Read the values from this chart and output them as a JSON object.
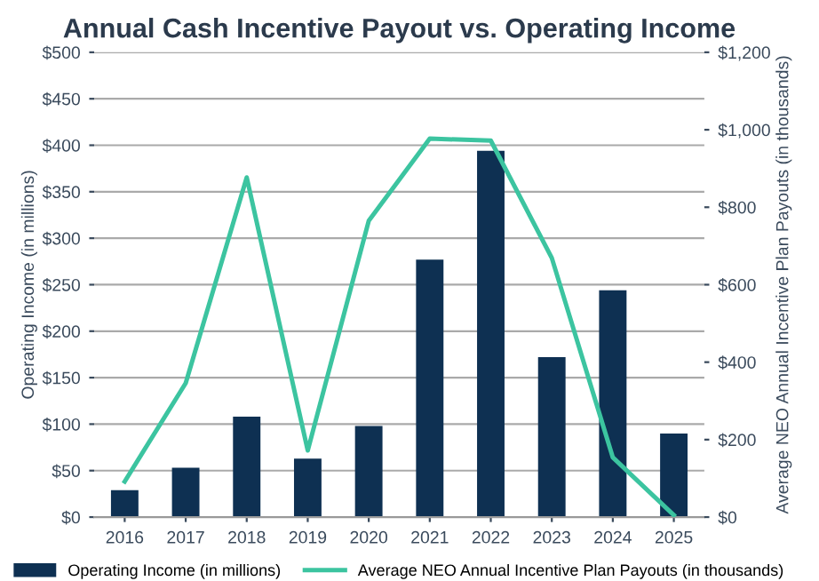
{
  "chart_data": {
    "type": "bar",
    "title": "Annual Cash Incentive Payout vs. Operating Income",
    "ylabel": "Operating Income (in millions)",
    "y2label": "Average NEO Annual Incentive Plan Payouts (in thousands)",
    "categories": [
      "2016",
      "2017",
      "2018",
      "2019",
      "2020",
      "2021",
      "2022",
      "2023",
      "2024",
      "2025"
    ],
    "series": [
      {
        "name": "Operating Income (in millions)",
        "color": "#0e3052",
        "values": [
          29,
          53,
          108,
          63,
          98,
          277,
          394,
          172,
          244,
          90
        ]
      },
      {
        "name": "Average NEO Annual Incentive Plan Payouts (in thousands)",
        "type": "line",
        "axis": "y2",
        "color": "#3cc4a0",
        "values": [
          92,
          346,
          877,
          172,
          765,
          977,
          972,
          669,
          154,
          5
        ]
      }
    ],
    "ylim": [
      0,
      500
    ],
    "yticks": [
      {
        "value": 0,
        "label": "$0"
      },
      {
        "value": 50,
        "label": "$50"
      },
      {
        "value": 100,
        "label": "$100"
      },
      {
        "value": 150,
        "label": "$150"
      },
      {
        "value": 200,
        "label": "$200"
      },
      {
        "value": 250,
        "label": "$250"
      },
      {
        "value": 300,
        "label": "$300"
      },
      {
        "value": 350,
        "label": "$350"
      },
      {
        "value": 400,
        "label": "$400"
      },
      {
        "value": 450,
        "label": "$450"
      },
      {
        "value": 500,
        "label": "$500"
      }
    ],
    "y2lim": [
      0,
      1200
    ],
    "y2ticks": [
      {
        "value": 0,
        "label": "$0"
      },
      {
        "value": 200,
        "label": "$200"
      },
      {
        "value": 400,
        "label": "$400"
      },
      {
        "value": 600,
        "label": "$600"
      },
      {
        "value": 800,
        "label": "$800"
      },
      {
        "value": 1000,
        "label": "$1,000"
      },
      {
        "value": 1200,
        "label": "$1,200"
      }
    ],
    "grid": "y",
    "legend": "bottom",
    "marker": "none"
  }
}
